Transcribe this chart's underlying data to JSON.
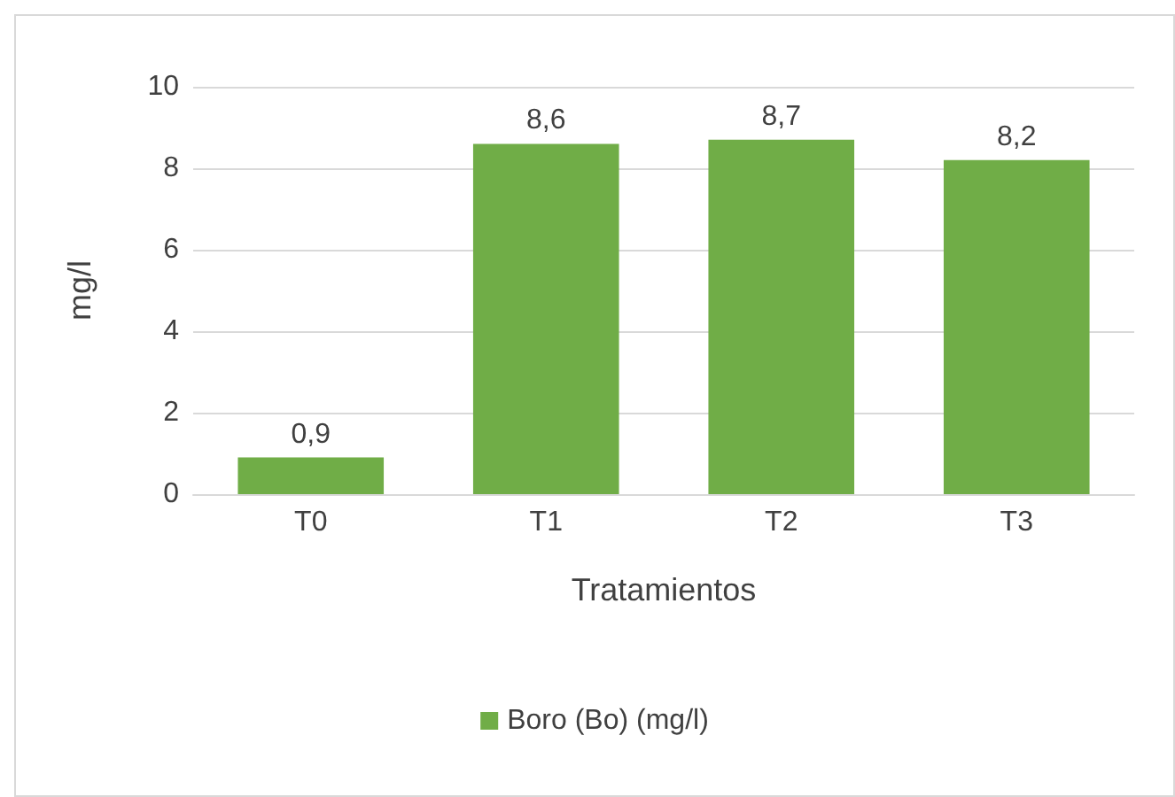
{
  "chart_data": {
    "type": "bar",
    "xlabel": "Tratamientos",
    "ylabel": "mg/l",
    "categories": [
      "T0",
      "T1",
      "T2",
      "T3"
    ],
    "series": [
      {
        "name": "Boro (Bo) (mg/l)",
        "color": "#70ad47",
        "values": [
          0.9,
          8.6,
          8.7,
          8.2
        ],
        "value_labels": [
          "0,9",
          "8,6",
          "8,7",
          "8,2"
        ]
      }
    ],
    "ylim": [
      0,
      10
    ],
    "yticks": [
      0,
      2,
      4,
      6,
      8,
      10
    ],
    "grid": "y",
    "legend": "bottom"
  }
}
